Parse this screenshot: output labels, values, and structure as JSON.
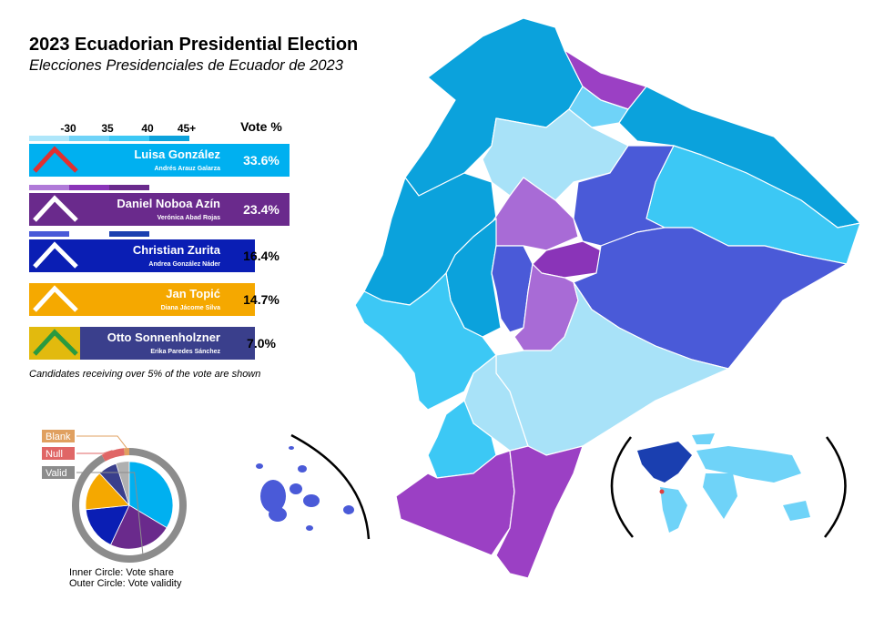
{
  "title": "2023 Ecuadorian Presidential Election",
  "subtitle": "Elecciones Presidenciales de Ecuador de 2023",
  "legend": {
    "scale_labels": [
      "-30",
      "35",
      "40",
      "45+"
    ],
    "vote_header": "Vote %"
  },
  "candidates": [
    {
      "name": "Luisa González",
      "running_mate": "Andrés Arauz Galarza",
      "vote": 33.6,
      "vote_label": "33.6%",
      "color": "#00b0f0"
    },
    {
      "name": "Daniel Noboa Azín",
      "running_mate": "Verónica Abad Rojas",
      "vote": 23.4,
      "vote_label": "23.4%",
      "color": "#6a2a8c"
    },
    {
      "name": "Christian Zurita",
      "running_mate": "Andrea González Náder",
      "vote": 16.4,
      "vote_label": "16.4%",
      "color": "#0a1eb4"
    },
    {
      "name": "Jan Topić",
      "running_mate": "Diana Jácome Silva",
      "vote": 14.7,
      "vote_label": "14.7%",
      "color": "#f5a800"
    },
    {
      "name": "Otto Sonnenholzner",
      "running_mate": "Erika Paredes Sánchez",
      "vote": 7.0,
      "vote_label": "7.0%",
      "color": "#3a3f8c"
    }
  ],
  "note": "Candidates receiving over 5% of the vote are shown",
  "pie": {
    "validity": [
      {
        "label": "Blank",
        "value": 1.5,
        "color": "#e0a060"
      },
      {
        "label": "Null",
        "value": 6.5,
        "color": "#e06666"
      },
      {
        "label": "Valid",
        "value": 92,
        "color": "#8c8c8c"
      }
    ],
    "captions": [
      "Inner Circle: Vote share",
      "Outer Circle: Vote validity"
    ]
  }
}
